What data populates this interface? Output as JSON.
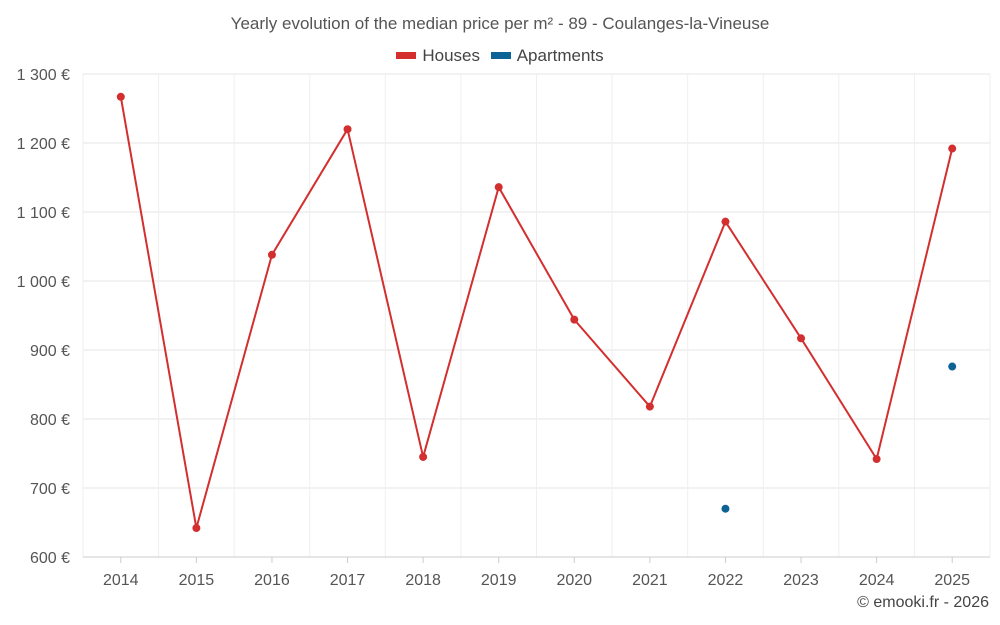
{
  "chart_data": {
    "type": "line",
    "title": "Yearly evolution of the median price per m² - 89 - Coulanges-la-Vineuse",
    "categories": [
      "2014",
      "2015",
      "2016",
      "2017",
      "2018",
      "2019",
      "2020",
      "2021",
      "2022",
      "2023",
      "2024",
      "2025"
    ],
    "series": [
      {
        "name": "Houses",
        "color": "#d32f2f",
        "line": true,
        "values": [
          1267,
          642,
          1038,
          1220,
          745,
          1136,
          944,
          818,
          1086,
          917,
          742,
          1192
        ]
      },
      {
        "name": "Apartments",
        "color": "#0d6395",
        "line": false,
        "values": [
          null,
          null,
          null,
          null,
          null,
          null,
          null,
          null,
          670,
          null,
          null,
          876
        ]
      }
    ],
    "y_ticks": [
      600,
      700,
      800,
      900,
      1000,
      1100,
      1200,
      1300
    ],
    "y_tick_labels": [
      "600 €",
      "700 €",
      "800 €",
      "900 €",
      "1 000 €",
      "1 100 €",
      "1 200 €",
      "1 300 €"
    ],
    "ylim": [
      600,
      1300
    ],
    "xlabel": "",
    "ylabel": "",
    "grid": true,
    "legend_position": "top-center"
  },
  "credit": "© emooki.fr - 2026"
}
